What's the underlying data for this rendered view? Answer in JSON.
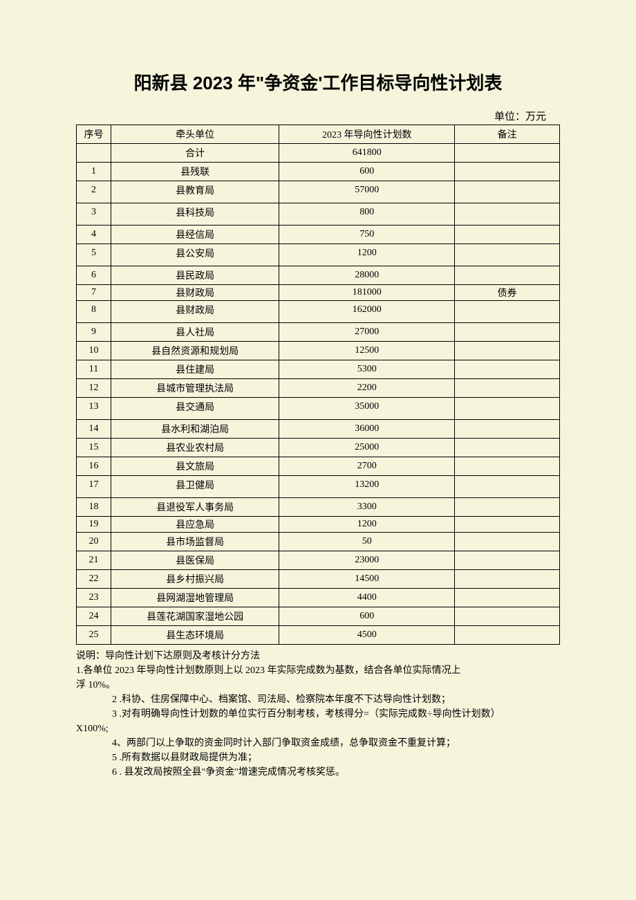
{
  "title": "阳新县 2023 年\"争资金'工作目标导向性计划表",
  "unit_label": "单位：万元",
  "headers": {
    "seq": "序号",
    "leader": "牵头单位",
    "plan": "2023 年导向性计划数",
    "note": "备注"
  },
  "total_row": {
    "seq": "",
    "leader": "合计",
    "plan": "641800",
    "note": ""
  },
  "rows": [
    {
      "seq": "1",
      "leader": "县残联",
      "plan": "600",
      "note": "",
      "cls": ""
    },
    {
      "seq": "2",
      "leader": "县教育局",
      "plan": "57000",
      "note": "",
      "cls": "tall"
    },
    {
      "seq": "3",
      "leader": "县科技局",
      "plan": "800",
      "note": "",
      "cls": "tall"
    },
    {
      "seq": "4",
      "leader": "县经信局",
      "plan": "750",
      "note": "",
      "cls": ""
    },
    {
      "seq": "5",
      "leader": "县公安局",
      "plan": "1200",
      "note": "",
      "cls": "tall"
    },
    {
      "seq": "6",
      "leader": "县民政局",
      "plan": "28000",
      "note": "",
      "cls": ""
    },
    {
      "seq": "7",
      "leader": "县财政局",
      "plan": "181000",
      "note": "债券",
      "cls": "short"
    },
    {
      "seq": "8",
      "leader": "县财政局",
      "plan": "162000",
      "note": "",
      "cls": "tall"
    },
    {
      "seq": "9",
      "leader": "县人社局",
      "plan": "27000",
      "note": "",
      "cls": ""
    },
    {
      "seq": "10",
      "leader": "县自然资源和规划局",
      "plan": "12500",
      "note": "",
      "cls": ""
    },
    {
      "seq": "11",
      "leader": "县住建局",
      "plan": "5300",
      "note": "",
      "cls": ""
    },
    {
      "seq": "12",
      "leader": "县城市管理执法局",
      "plan": "2200",
      "note": "",
      "cls": ""
    },
    {
      "seq": "13",
      "leader": "县交通局",
      "plan": "35000",
      "note": "",
      "cls": "tall"
    },
    {
      "seq": "14",
      "leader": "县水利和湖泊局",
      "plan": "36000",
      "note": "",
      "cls": ""
    },
    {
      "seq": "15",
      "leader": "县农业农村局",
      "plan": "25000",
      "note": "",
      "cls": ""
    },
    {
      "seq": "16",
      "leader": "县文旅局",
      "plan": "2700",
      "note": "",
      "cls": ""
    },
    {
      "seq": "17",
      "leader": "县卫健局",
      "plan": "13200",
      "note": "",
      "cls": "tall"
    },
    {
      "seq": "18",
      "leader": "县退役军人事务局",
      "plan": "3300",
      "note": "",
      "cls": ""
    },
    {
      "seq": "19",
      "leader": "县应急局",
      "plan": "1200",
      "note": "",
      "cls": "short"
    },
    {
      "seq": "20",
      "leader": "县市场监督局",
      "plan": "50",
      "note": "",
      "cls": ""
    },
    {
      "seq": "21",
      "leader": "县医保局",
      "plan": "23000",
      "note": "",
      "cls": ""
    },
    {
      "seq": "22",
      "leader": "县乡村振兴局",
      "plan": "14500",
      "note": "",
      "cls": ""
    },
    {
      "seq": "23",
      "leader": "县网湖湿地管理局",
      "plan": "4400",
      "note": "",
      "cls": ""
    },
    {
      "seq": "24",
      "leader": "县莲花湖国家湿地公园",
      "plan": "600",
      "note": "",
      "cls": ""
    },
    {
      "seq": "25",
      "leader": "县生态环境局",
      "plan": "4500",
      "note": "",
      "cls": ""
    }
  ],
  "notes": [
    {
      "text": "说明：导向性计划下达原则及考核计分方法",
      "cls": "line1"
    },
    {
      "text": "1.各单位 2023 年导向性计划数原则上以 2023 年实际完成数为基数，结合各单位实际情况上",
      "cls": "noindent"
    },
    {
      "text": "浮 10%。",
      "cls": "noindent"
    },
    {
      "text": "2  .科协、住房保障中心、档案馆、司法局、检察院本年度不下达导向性计划数；",
      "cls": "indent1"
    },
    {
      "text": "3  .对有明确导向性计划数的单位实行百分制考核，考核得分=（实际完成数÷导向性计划数）",
      "cls": "indent1"
    },
    {
      "text": "X100%;",
      "cls": "noindent"
    },
    {
      "text": "4、两部门以上争取的资金同时计入部门争取资金成绩，总争取资金不重复计算；",
      "cls": "indent1"
    },
    {
      "text": "5  .所有数据以县财政局提供为准；",
      "cls": "indent1"
    },
    {
      "text": "6  . 县发改局按照全县\"争资金\"增速完成情况考核奖惩。",
      "cls": "indent1"
    }
  ],
  "colors": {
    "background": "#f5f5dc",
    "border": "#000000",
    "dotted": "#999999",
    "text": "#000000"
  }
}
